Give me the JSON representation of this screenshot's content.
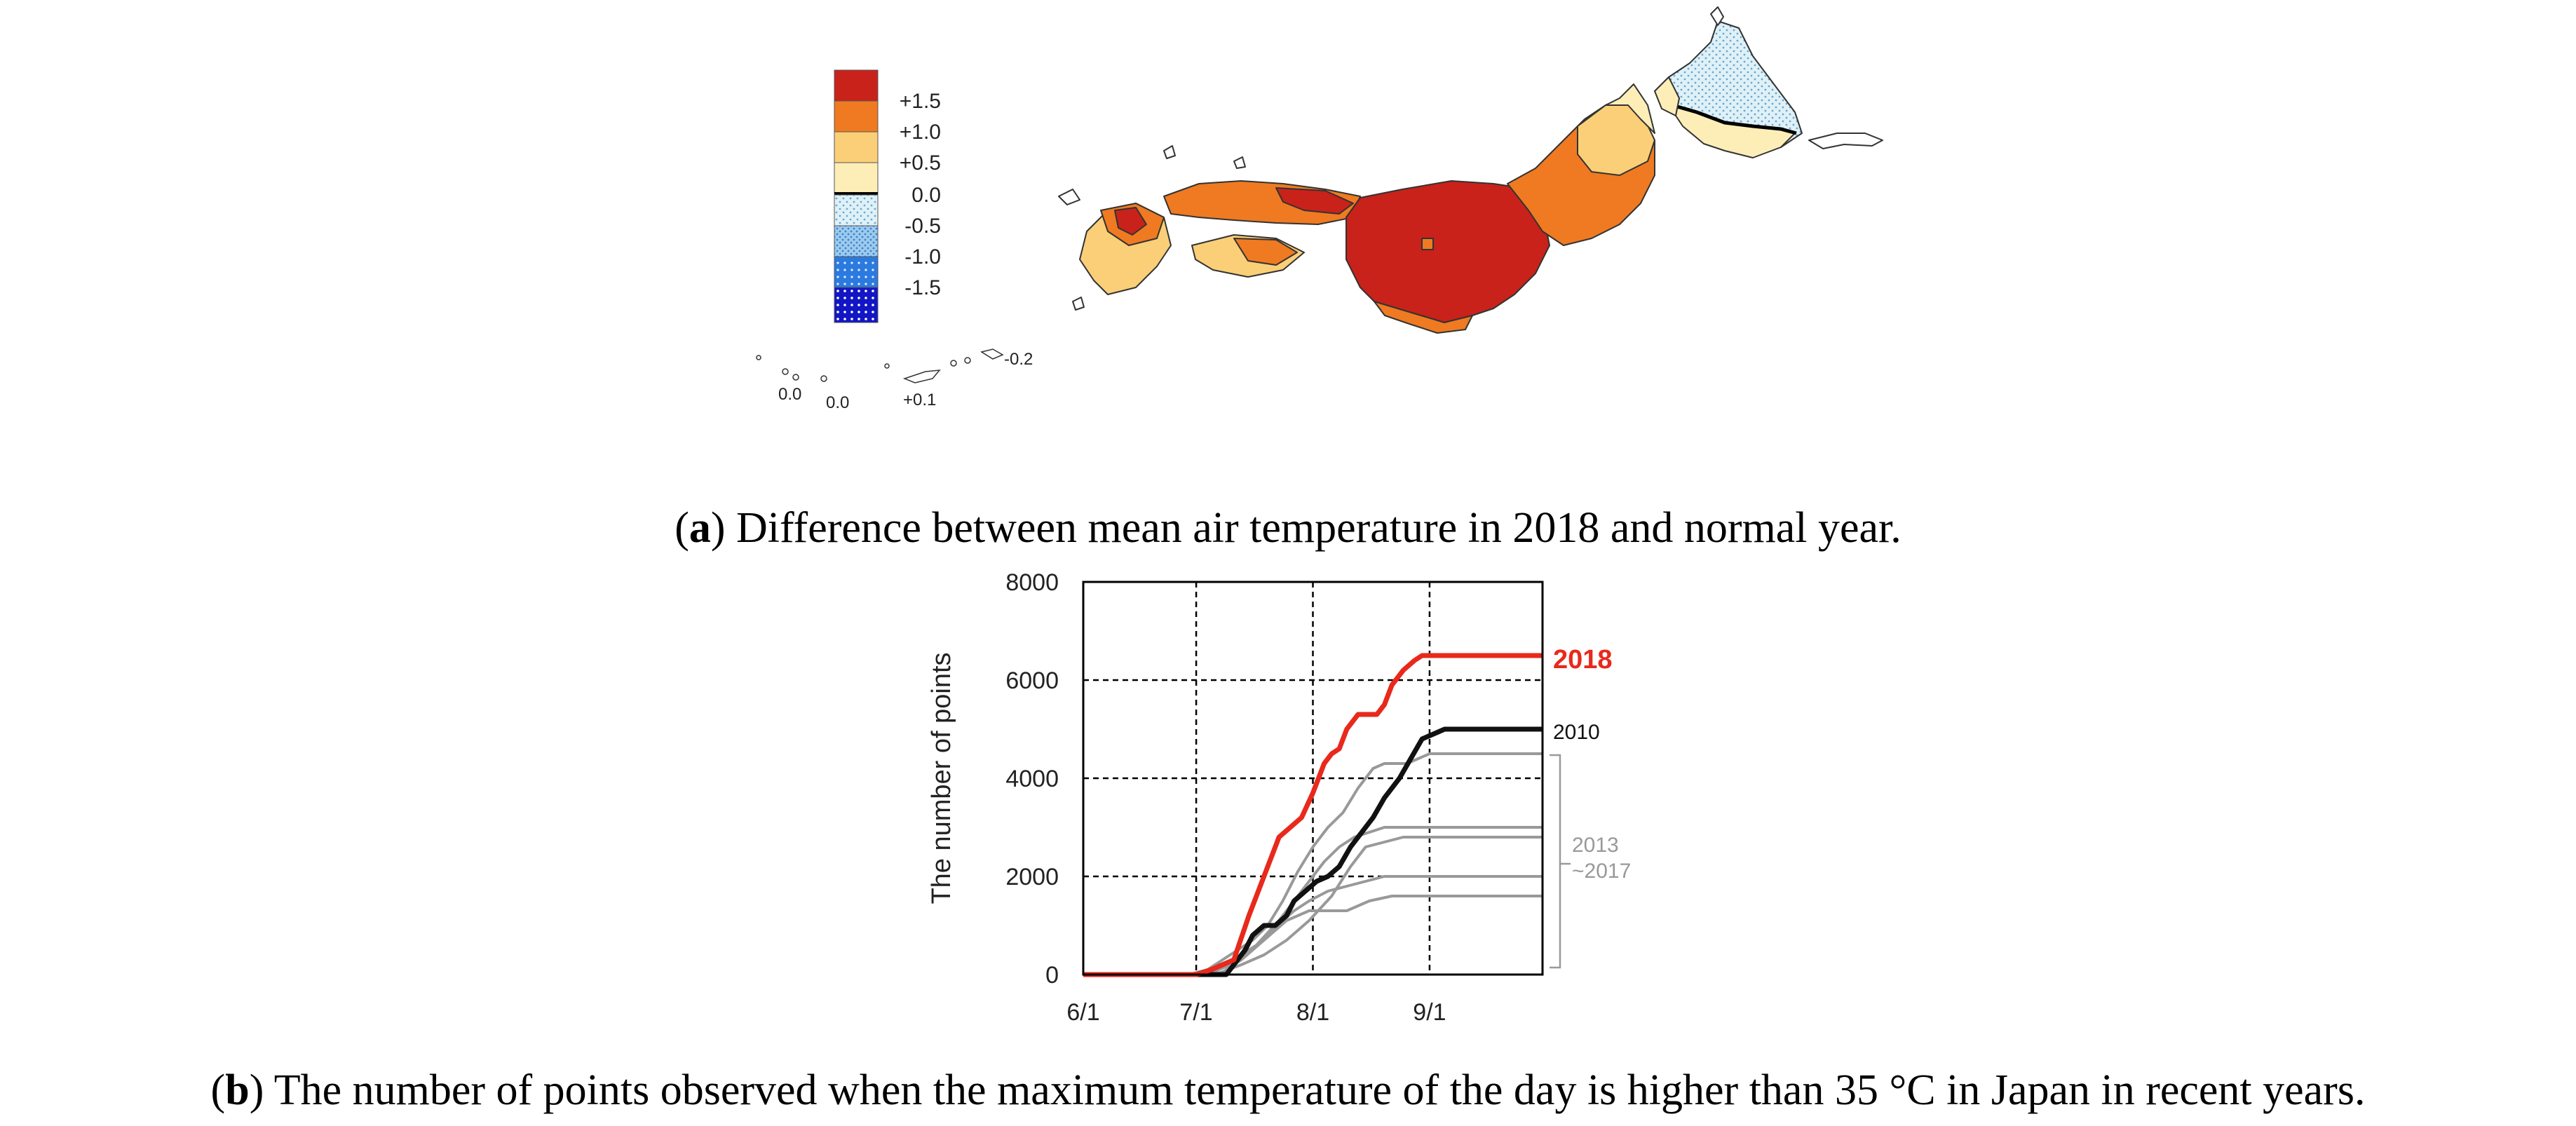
{
  "map": {
    "legend": {
      "labels": [
        "+1.5",
        "+1.0",
        "+0.5",
        "0.0",
        "-0.5",
        "-1.0",
        "-1.5"
      ],
      "colors": [
        "#c8221a",
        "#ef7a21",
        "#fbcf78",
        "#fdeeb8",
        "#d8eef5",
        "#8cc0e8",
        "#2a72d8",
        "#1418c8"
      ]
    },
    "island_labels": [
      "0.0",
      "0.0",
      "+0.1",
      "-0.2"
    ],
    "colors": {
      "deep_red": "#c8221a",
      "orange": "#ef7a21",
      "light_orange": "#fbcf78",
      "cream": "#fdeeb8",
      "light_blue": "#d8eef5"
    }
  },
  "captions": {
    "a_letter": "a",
    "a_text": " Difference between mean air temperature in 2018 and normal year.",
    "b_letter": "b",
    "b_text": " The number of points observed when the maximum temperature of the day is higher than 35 °C in Japan in recent years."
  },
  "chart_data": {
    "type": "line",
    "title": "",
    "xlabel": "",
    "ylabel": "The number of  points",
    "x_tick_labels": [
      "6/1",
      "7/1",
      "8/1",
      "9/1"
    ],
    "x_ticks_days": [
      0,
      30,
      61,
      92
    ],
    "xlim": [
      0,
      122
    ],
    "ylim": [
      0,
      8000
    ],
    "y_ticks": [
      0,
      2000,
      4000,
      6000,
      8000
    ],
    "y_tick_labels": [
      "0",
      "2000",
      "4000",
      "6000",
      "8000"
    ],
    "grid": "dashed",
    "annotations": {
      "label_2018": "2018",
      "label_2010": "2010",
      "bracket_label_line1": "2013",
      "bracket_label_line2": "~2017"
    },
    "series": [
      {
        "name": "2018",
        "color": "#e8291c",
        "x": [
          0,
          30,
          34,
          40,
          44,
          48,
          52,
          55,
          58,
          61,
          64,
          66,
          68,
          70,
          73,
          75,
          78,
          80,
          82,
          85,
          88,
          90,
          92,
          122
        ],
        "y": [
          0,
          0,
          100,
          300,
          1200,
          2000,
          2800,
          3000,
          3200,
          3700,
          4300,
          4500,
          4600,
          5000,
          5300,
          5300,
          5300,
          5500,
          5900,
          6200,
          6400,
          6500,
          6500,
          6500
        ]
      },
      {
        "name": "2010",
        "color": "#111111",
        "x": [
          0,
          38,
          40,
          43,
          45,
          48,
          51,
          54,
          56,
          59,
          62,
          65,
          68,
          71,
          74,
          77,
          80,
          84,
          87,
          90,
          93,
          96,
          100,
          122
        ],
        "y": [
          0,
          0,
          200,
          500,
          800,
          1000,
          1000,
          1200,
          1500,
          1700,
          1900,
          2000,
          2200,
          2600,
          2900,
          3200,
          3600,
          4000,
          4400,
          4800,
          4900,
          5000,
          5000,
          5000
        ]
      },
      {
        "name": "2013-2017 a",
        "color": "#999999",
        "x": [
          0,
          28,
          33,
          37,
          41,
          45,
          49,
          53,
          57,
          61,
          65,
          69,
          73,
          77,
          80,
          83,
          86,
          89,
          92,
          122
        ],
        "y": [
          0,
          0,
          100,
          300,
          500,
          700,
          1000,
          1500,
          2100,
          2600,
          3000,
          3300,
          3800,
          4200,
          4300,
          4300,
          4300,
          4400,
          4500,
          4500
        ]
      },
      {
        "name": "2013-2017 b",
        "color": "#999999",
        "x": [
          0,
          34,
          40,
          46,
          52,
          58,
          64,
          68,
          72,
          76,
          80,
          84,
          88,
          92,
          122
        ],
        "y": [
          0,
          0,
          300,
          600,
          1100,
          1700,
          2300,
          2600,
          2800,
          2900,
          3000,
          3000,
          3000,
          3000,
          3000
        ]
      },
      {
        "name": "2013-2017 c",
        "color": "#999999",
        "x": [
          0,
          35,
          42,
          48,
          54,
          60,
          66,
          71,
          75,
          80,
          85,
          90,
          122
        ],
        "y": [
          0,
          0,
          200,
          400,
          700,
          1100,
          1600,
          2200,
          2600,
          2700,
          2800,
          2800,
          2800
        ]
      },
      {
        "name": "2013-2017 d",
        "color": "#999999",
        "x": [
          0,
          33,
          39,
          45,
          50,
          56,
          60,
          65,
          70,
          75,
          80,
          85,
          122
        ],
        "y": [
          0,
          0,
          200,
          500,
          900,
          1300,
          1500,
          1700,
          1800,
          1900,
          2000,
          2000,
          2000
        ]
      },
      {
        "name": "2013-2017 e",
        "color": "#999999",
        "x": [
          0,
          36,
          42,
          48,
          54,
          60,
          65,
          70,
          76,
          82,
          88,
          122
        ],
        "y": [
          0,
          0,
          300,
          700,
          1100,
          1300,
          1300,
          1300,
          1500,
          1600,
          1600,
          1600
        ]
      }
    ]
  }
}
